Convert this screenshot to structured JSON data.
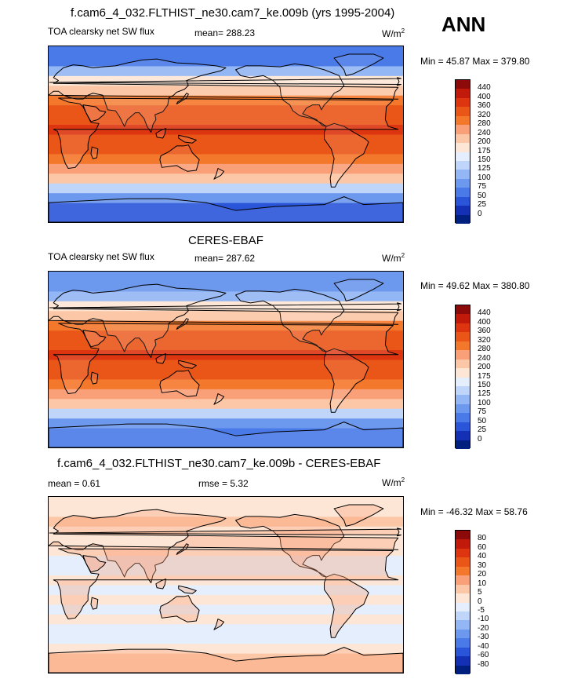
{
  "season": "ANN",
  "panels": [
    {
      "title": "f.cam6_4_032.FLTHIST_ne30.cam7_ke.009b (yrs 1995-2004)",
      "variable": "TOA clearsky net SW flux",
      "stat1": "mean= 288.23",
      "stat2": "",
      "units_base": "W/m",
      "units_exp": "2",
      "minmax": "Min =  45.87 Max = 379.80",
      "levels": [
        "440",
        "400",
        "360",
        "320",
        "280",
        "240",
        "200",
        "175",
        "150",
        "125",
        "100",
        "75",
        "50",
        "25",
        "0"
      ],
      "colors": [
        "#8c0a0a",
        "#c21a0a",
        "#dd3510",
        "#ea5518",
        "#f4782c",
        "#f9a078",
        "#fcc7a6",
        "#fde6d6",
        "#e4eefc",
        "#bfd6fa",
        "#93b6f4",
        "#6c98ee",
        "#4a7ae8",
        "#2a55d8",
        "#1431b5",
        "#00207f"
      ]
    },
    {
      "title": "CERES-EBAF",
      "variable": "TOA clearsky net SW flux",
      "stat1": "mean= 287.62",
      "stat2": "",
      "units_base": "W/m",
      "units_exp": "2",
      "minmax": "Min =  49.62 Max = 380.80",
      "levels": [
        "440",
        "400",
        "360",
        "320",
        "280",
        "240",
        "200",
        "175",
        "150",
        "125",
        "100",
        "75",
        "50",
        "25",
        "0"
      ],
      "colors": [
        "#8c0a0a",
        "#c21a0a",
        "#dd3510",
        "#ea5518",
        "#f4782c",
        "#f9a078",
        "#fcc7a6",
        "#fde6d6",
        "#e4eefc",
        "#bfd6fa",
        "#93b6f4",
        "#6c98ee",
        "#4a7ae8",
        "#2a55d8",
        "#1431b5",
        "#00207f"
      ]
    },
    {
      "title": "f.cam6_4_032.FLTHIST_ne30.cam7_ke.009b - CERES-EBAF",
      "variable": "",
      "stat1": "mean =   0.61",
      "stat2": "rmse =   5.32",
      "units_base": "W/m",
      "units_exp": "2",
      "minmax": "Min = -46.32 Max =  58.76",
      "levels": [
        "80",
        "60",
        "40",
        "30",
        "20",
        "10",
        "5",
        "0",
        "-5",
        "-10",
        "-20",
        "-30",
        "-40",
        "-60",
        "-80"
      ],
      "colors": [
        "#8c0a0a",
        "#c21a0a",
        "#dd3510",
        "#ea5518",
        "#f4782c",
        "#f9a078",
        "#fcc7a6",
        "#fde6d6",
        "#e4eefc",
        "#bfd6fa",
        "#93b6f4",
        "#6c98ee",
        "#4a7ae8",
        "#2a55d8",
        "#1431b5",
        "#00207f"
      ]
    }
  ],
  "chart_data": [
    {
      "type": "heatmap",
      "title": "f.cam6_4_032.FLTHIST_ne30.cam7_ke.009b (yrs 1995-2004)",
      "subtitle": "TOA clearsky net SW flux",
      "mean": 288.23,
      "min": 45.87,
      "max": 379.8,
      "units": "W/m2",
      "latitude_bands": [
        -90,
        -70,
        -60,
        -50,
        -40,
        -30,
        -20,
        -10,
        0,
        10,
        20,
        30,
        40,
        50,
        60,
        70,
        90
      ],
      "band_values": [
        45,
        75,
        125,
        200,
        260,
        310,
        340,
        355,
        360,
        350,
        320,
        280,
        230,
        180,
        120,
        70
      ],
      "contour_levels": [
        0,
        25,
        50,
        75,
        100,
        125,
        150,
        175,
        200,
        240,
        280,
        320,
        360,
        400,
        440
      ]
    },
    {
      "type": "heatmap",
      "title": "CERES-EBAF",
      "subtitle": "TOA clearsky net SW flux",
      "mean": 287.62,
      "min": 49.62,
      "max": 380.8,
      "units": "W/m2",
      "latitude_bands": [
        -90,
        -70,
        -60,
        -50,
        -40,
        -30,
        -20,
        -10,
        0,
        10,
        20,
        30,
        40,
        50,
        60,
        70,
        90
      ],
      "band_values": [
        50,
        80,
        130,
        200,
        260,
        310,
        340,
        355,
        360,
        350,
        320,
        280,
        230,
        180,
        120,
        75
      ],
      "contour_levels": [
        0,
        25,
        50,
        75,
        100,
        125,
        150,
        175,
        200,
        240,
        280,
        320,
        360,
        400,
        440
      ]
    },
    {
      "type": "heatmap",
      "title": "f.cam6_4_032.FLTHIST_ne30.cam7_ke.009b - CERES-EBAF",
      "mean": 0.61,
      "rmse": 5.32,
      "min": -46.32,
      "max": 58.76,
      "units": "W/m2",
      "latitude_bands": [
        -90,
        -70,
        -60,
        -50,
        -40,
        -30,
        -20,
        -10,
        0,
        10,
        20,
        30,
        40,
        50,
        60,
        70,
        90
      ],
      "band_values": [
        8,
        3,
        -5,
        -3,
        0,
        -2,
        2,
        -1,
        0,
        -1,
        -2,
        2,
        3,
        4,
        5,
        3
      ],
      "contour_levels": [
        -80,
        -60,
        -40,
        -30,
        -20,
        -10,
        -5,
        0,
        5,
        10,
        20,
        30,
        40,
        60,
        80
      ]
    }
  ]
}
